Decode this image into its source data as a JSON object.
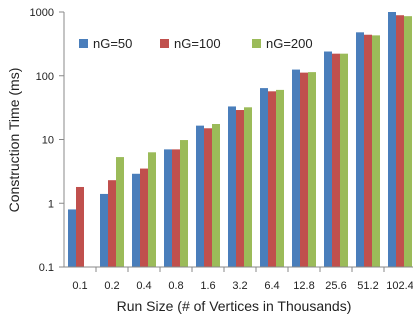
{
  "chart_data": {
    "type": "bar",
    "xlabel": "Run Size (# of Vertices in Thousands)",
    "ylabel": "Construction Time (ms)",
    "yscale": "log",
    "ylim": [
      0.1,
      1000
    ],
    "yticks": [
      "0.1",
      "1",
      "10",
      "100",
      "1000"
    ],
    "grid": false,
    "legend_position": "top",
    "categories": [
      "0.1",
      "0.2",
      "0.4",
      "0.8",
      "1.6",
      "3.2",
      "6.4",
      "12.8",
      "25.6",
      "51.2",
      "102.4"
    ],
    "series": [
      {
        "name": "nG=50",
        "color": "#4a7ebb",
        "values": [
          0.8,
          1.4,
          2.9,
          7.0,
          16.5,
          33,
          64,
          125,
          240,
          480,
          1000
        ]
      },
      {
        "name": "nG=100",
        "color": "#c0504d",
        "values": [
          1.8,
          2.3,
          3.5,
          7.0,
          15.0,
          29,
          57,
          112,
          222,
          440,
          890
        ]
      },
      {
        "name": "nG=200",
        "color": "#9bbb59",
        "values": [
          null,
          5.3,
          6.3,
          9.8,
          17.5,
          32,
          60,
          114,
          222,
          430,
          860
        ]
      }
    ]
  }
}
